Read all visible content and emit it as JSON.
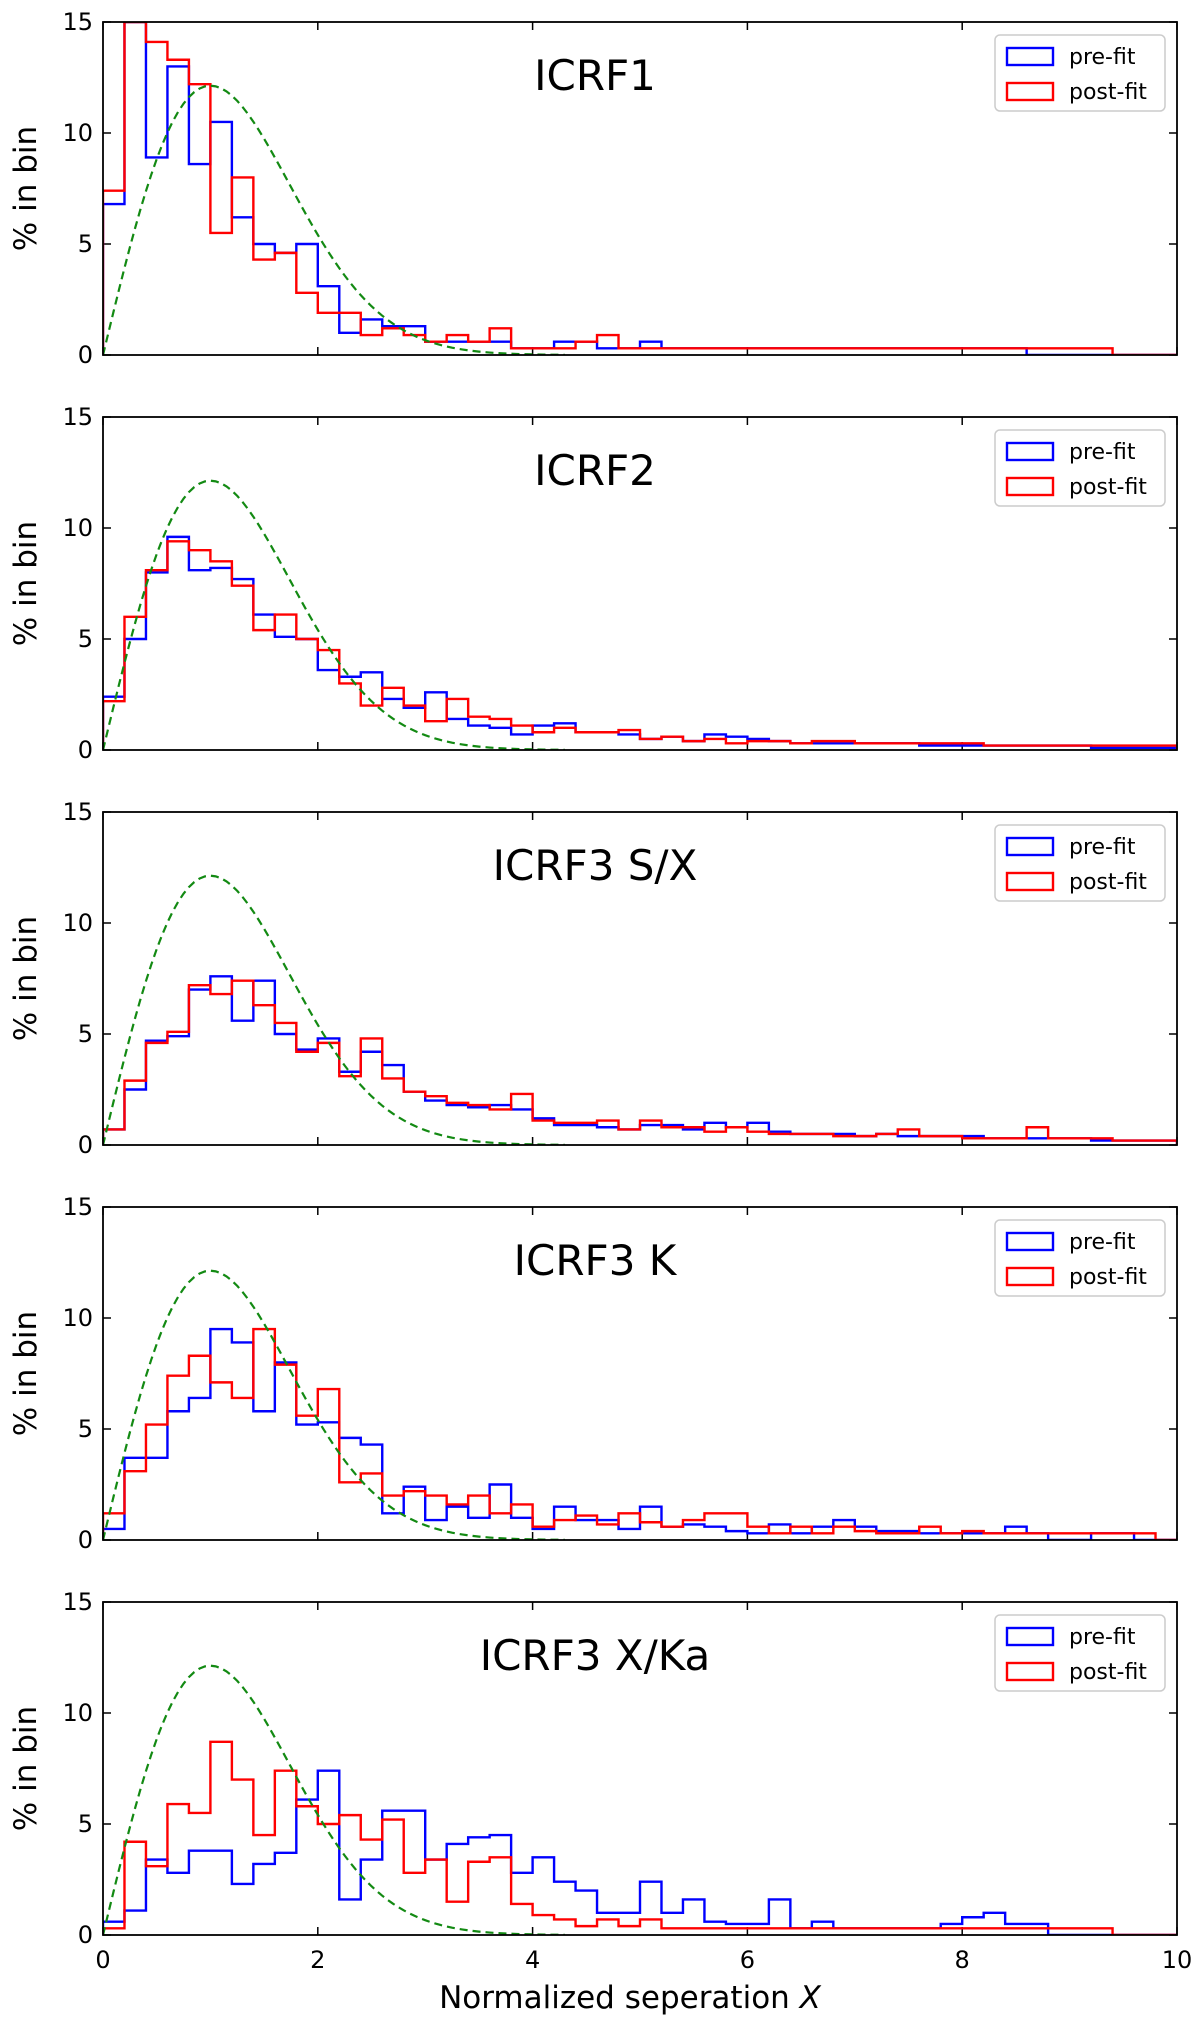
{
  "figure": {
    "xlabel_text": "Normalized seperation",
    "xlabel_var": "X"
  },
  "colors": {
    "pre_fit": "#0000ff",
    "post_fit": "#ff0000",
    "model": "#138a13",
    "axis": "#000000"
  },
  "chart_data": [
    {
      "type": "histogram",
      "title": "ICRF1",
      "ylabel": "% in bin",
      "xlim": [
        0,
        10
      ],
      "ylim": [
        0,
        15
      ],
      "bin_width": 0.2,
      "xticks": [
        0,
        2,
        4,
        6,
        8,
        10
      ],
      "xtick_labels": [],
      "yticks": [
        0,
        5,
        10,
        15
      ],
      "legend": {
        "placement": "top-right",
        "entries": [
          "pre-fit",
          "post-fit"
        ]
      },
      "series": [
        {
          "name": "pre-fit",
          "values": [
            6.8,
            15.0,
            8.9,
            13.0,
            8.6,
            10.5,
            6.2,
            5.0,
            4.6,
            5.0,
            3.1,
            1.0,
            1.6,
            1.3,
            1.3,
            0.6,
            0.6,
            0.6,
            0.6,
            0.3,
            0.3,
            0.6,
            0.6,
            0.3,
            0.3,
            0.6,
            0.3,
            0.3,
            0.3,
            0.3,
            0.3,
            0.3,
            0.3,
            0.3,
            0.3,
            0.3,
            0.3,
            0.3,
            0.3,
            0.3,
            0.3,
            0.3,
            0.3,
            0,
            0,
            0,
            0,
            0,
            0,
            0
          ]
        },
        {
          "name": "post-fit",
          "values": [
            7.4,
            15.0,
            14.1,
            13.3,
            12.2,
            5.5,
            8.0,
            4.3,
            4.6,
            2.8,
            1.9,
            1.9,
            0.9,
            1.2,
            0.9,
            0.6,
            0.9,
            0.6,
            1.2,
            0.3,
            0.3,
            0.3,
            0.6,
            0.9,
            0.3,
            0.3,
            0.3,
            0.3,
            0.3,
            0.3,
            0.3,
            0.3,
            0.3,
            0.3,
            0.3,
            0.3,
            0.3,
            0.3,
            0.3,
            0.3,
            0.3,
            0.3,
            0.3,
            0.3,
            0.3,
            0.3,
            0.3,
            0,
            0,
            0
          ]
        }
      ]
    },
    {
      "type": "histogram",
      "title": "ICRF2",
      "ylabel": "% in bin",
      "xlim": [
        0,
        10
      ],
      "ylim": [
        0,
        15
      ],
      "bin_width": 0.2,
      "xticks": [
        0,
        2,
        4,
        6,
        8,
        10
      ],
      "xtick_labels": [],
      "yticks": [
        0,
        5,
        10,
        15
      ],
      "legend": {
        "placement": "top-right",
        "entries": [
          "pre-fit",
          "post-fit"
        ]
      },
      "series": [
        {
          "name": "pre-fit",
          "values": [
            2.4,
            5.0,
            8.0,
            9.6,
            8.1,
            8.2,
            7.7,
            6.1,
            5.1,
            5.0,
            3.6,
            3.3,
            3.5,
            2.3,
            1.9,
            2.6,
            1.4,
            1.1,
            1.0,
            0.7,
            1.1,
            1.2,
            0.8,
            0.8,
            0.7,
            0.5,
            0.6,
            0.4,
            0.7,
            0.6,
            0.5,
            0.4,
            0.3,
            0.3,
            0.3,
            0.3,
            0.3,
            0.3,
            0.2,
            0.2,
            0.2,
            0.2,
            0.2,
            0.2,
            0.2,
            0.2,
            0.1,
            0.1,
            0.1,
            0.1
          ]
        },
        {
          "name": "post-fit",
          "values": [
            2.2,
            6.0,
            8.1,
            9.4,
            9.0,
            8.5,
            7.4,
            5.4,
            6.1,
            5.0,
            4.5,
            3.0,
            2.0,
            2.8,
            2.0,
            1.3,
            2.3,
            1.5,
            1.4,
            1.1,
            0.8,
            1.0,
            0.8,
            0.8,
            0.9,
            0.5,
            0.6,
            0.4,
            0.5,
            0.3,
            0.4,
            0.4,
            0.3,
            0.4,
            0.4,
            0.3,
            0.3,
            0.3,
            0.3,
            0.3,
            0.3,
            0.2,
            0.2,
            0.2,
            0.2,
            0.2,
            0.2,
            0.2,
            0.2,
            0.2
          ]
        }
      ]
    },
    {
      "type": "histogram",
      "title": "ICRF3 S/X",
      "ylabel": "% in bin",
      "xlim": [
        0,
        10
      ],
      "ylim": [
        0,
        15
      ],
      "bin_width": 0.2,
      "xticks": [
        0,
        2,
        4,
        6,
        8,
        10
      ],
      "xtick_labels": [],
      "yticks": [
        0,
        5,
        10,
        15
      ],
      "legend": {
        "placement": "top-right",
        "entries": [
          "pre-fit",
          "post-fit"
        ]
      },
      "series": [
        {
          "name": "pre-fit",
          "values": [
            0.7,
            2.5,
            4.7,
            4.9,
            7.0,
            7.6,
            5.6,
            7.4,
            5.0,
            4.3,
            4.8,
            3.3,
            4.2,
            3.6,
            2.4,
            2.0,
            1.8,
            1.7,
            1.8,
            1.6,
            1.2,
            0.9,
            0.9,
            0.8,
            0.7,
            0.9,
            0.9,
            0.7,
            1.0,
            0.8,
            1.0,
            0.6,
            0.5,
            0.5,
            0.5,
            0.4,
            0.5,
            0.4,
            0.4,
            0.4,
            0.4,
            0.3,
            0.3,
            0.3,
            0.3,
            0.3,
            0.2,
            0.2,
            0.2,
            0.2
          ]
        },
        {
          "name": "post-fit",
          "values": [
            0.7,
            2.9,
            4.6,
            5.1,
            7.2,
            6.8,
            7.4,
            6.3,
            5.5,
            4.2,
            4.6,
            3.1,
            4.8,
            3.0,
            2.4,
            2.2,
            1.9,
            1.8,
            1.6,
            2.3,
            1.1,
            1.0,
            1.0,
            1.1,
            0.7,
            1.1,
            0.8,
            0.8,
            0.6,
            0.8,
            0.6,
            0.5,
            0.5,
            0.5,
            0.4,
            0.4,
            0.5,
            0.7,
            0.4,
            0.4,
            0.3,
            0.3,
            0.3,
            0.8,
            0.3,
            0.3,
            0.3,
            0.2,
            0.2,
            0.2
          ]
        }
      ]
    },
    {
      "type": "histogram",
      "title": "ICRF3 K",
      "ylabel": "% in bin",
      "xlim": [
        0,
        10
      ],
      "ylim": [
        0,
        15
      ],
      "bin_width": 0.2,
      "xticks": [
        0,
        2,
        4,
        6,
        8,
        10
      ],
      "xtick_labels": [],
      "yticks": [
        0,
        5,
        10,
        15
      ],
      "legend": {
        "placement": "top-right",
        "entries": [
          "pre-fit",
          "post-fit"
        ]
      },
      "series": [
        {
          "name": "pre-fit",
          "values": [
            0.5,
            3.7,
            3.7,
            5.8,
            6.4,
            9.5,
            8.9,
            5.8,
            8.0,
            5.2,
            5.3,
            4.6,
            4.3,
            1.2,
            2.4,
            0.9,
            1.5,
            1.0,
            2.5,
            1.0,
            0.5,
            1.5,
            0.9,
            0.9,
            0.5,
            1.5,
            0.6,
            0.7,
            0.6,
            0.4,
            0.3,
            0.7,
            0.3,
            0.6,
            0.9,
            0.6,
            0.4,
            0.4,
            0.3,
            0.3,
            0.3,
            0.3,
            0.6,
            0.3,
            0,
            0,
            0.3,
            0.3,
            0,
            0
          ]
        },
        {
          "name": "post-fit",
          "values": [
            1.2,
            3.1,
            5.2,
            7.4,
            8.3,
            7.1,
            6.4,
            9.5,
            7.9,
            5.6,
            6.8,
            2.6,
            3.0,
            2.0,
            2.2,
            2.0,
            1.6,
            2.0,
            1.2,
            1.6,
            0.6,
            0.9,
            1.1,
            0.7,
            1.2,
            0.8,
            0.6,
            0.9,
            1.2,
            1.2,
            0.6,
            0.3,
            0.6,
            0.3,
            0.6,
            0.4,
            0.3,
            0.3,
            0.6,
            0.3,
            0.4,
            0.3,
            0.3,
            0.3,
            0.3,
            0.3,
            0.3,
            0.3,
            0.3,
            0
          ]
        }
      ]
    },
    {
      "type": "histogram",
      "title": "ICRF3 X/Ka",
      "ylabel": "% in bin",
      "xlim": [
        0,
        10
      ],
      "ylim": [
        0,
        15
      ],
      "bin_width": 0.2,
      "xlabel": "Normalized seperation X",
      "xticks": [
        0,
        2,
        4,
        6,
        8,
        10
      ],
      "xtick_labels": [
        "0",
        "2",
        "4",
        "6",
        "8",
        "10"
      ],
      "yticks": [
        0,
        5,
        10,
        15
      ],
      "legend": {
        "placement": "top-right",
        "entries": [
          "pre-fit",
          "post-fit"
        ]
      },
      "series": [
        {
          "name": "pre-fit",
          "values": [
            0.6,
            1.1,
            3.4,
            2.8,
            3.8,
            3.8,
            2.3,
            3.2,
            3.7,
            6.1,
            7.4,
            1.6,
            3.4,
            5.6,
            5.6,
            3.4,
            4.1,
            4.4,
            4.5,
            2.8,
            3.5,
            2.4,
            2.0,
            1.0,
            1.0,
            2.4,
            1.0,
            1.6,
            0.6,
            0.5,
            0.5,
            1.6,
            0.3,
            0.6,
            0.3,
            0.3,
            0.3,
            0.3,
            0.3,
            0.5,
            0.8,
            1.0,
            0.5,
            0.5,
            0,
            0,
            0,
            0,
            0,
            0
          ]
        },
        {
          "name": "post-fit",
          "values": [
            0.3,
            4.2,
            3.1,
            5.9,
            5.5,
            8.7,
            7.0,
            4.5,
            7.4,
            5.8,
            5.0,
            5.4,
            4.3,
            5.2,
            2.8,
            3.4,
            1.5,
            3.3,
            3.5,
            1.4,
            0.9,
            0.7,
            0.4,
            0.7,
            0.4,
            0.7,
            0.3,
            0.3,
            0.3,
            0.3,
            0.3,
            0.3,
            0.3,
            0.3,
            0.3,
            0.3,
            0.3,
            0.3,
            0.3,
            0.3,
            0.3,
            0.3,
            0.3,
            0.3,
            0.3,
            0.3,
            0.3,
            0,
            0,
            0
          ]
        }
      ]
    }
  ],
  "model_curve": {
    "name": "reference Rayleigh distribution",
    "formula": "percent_per_bin = 100 * bin_width * x * exp(-x^2/2)",
    "x_range": [
      0,
      4.3
    ]
  }
}
